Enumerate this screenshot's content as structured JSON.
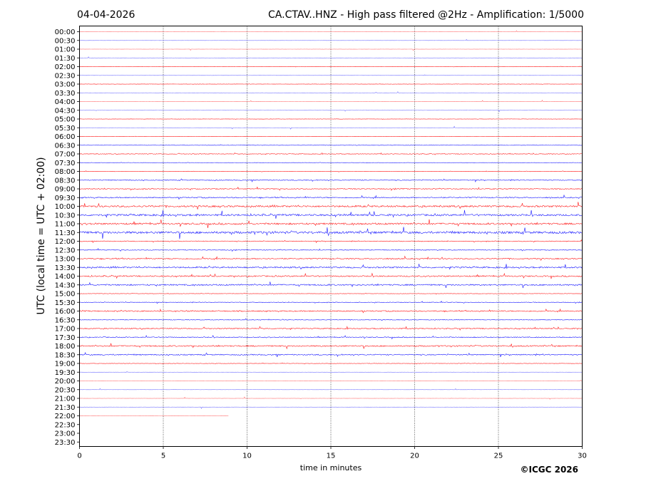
{
  "header": {
    "date": "04-04-2026",
    "title": "CA.CTAV..HNZ - High pass filtered @2Hz - Amplification: 1/5000"
  },
  "footer": {
    "copyright": "©ICGC 2026"
  },
  "chart_data": {
    "type": "line",
    "title": "CA.CTAV..HNZ - High pass filtered @2Hz - Amplification: 1/5000",
    "xlabel": "time in minutes",
    "ylabel": "UTC (local time = UTC + 02:00)",
    "xlim": [
      0,
      30
    ],
    "x_ticks": [
      0,
      5,
      10,
      15,
      20,
      25,
      30
    ],
    "y_tick_labels": [
      "00:00",
      "00:30",
      "01:00",
      "01:30",
      "02:00",
      "02:30",
      "03:00",
      "03:30",
      "04:00",
      "04:30",
      "05:00",
      "05:30",
      "06:00",
      "06:30",
      "07:00",
      "07:30",
      "08:00",
      "08:30",
      "09:00",
      "09:30",
      "10:00",
      "10:30",
      "11:00",
      "11:30",
      "12:00",
      "12:30",
      "13:00",
      "13:30",
      "14:00",
      "14:30",
      "15:00",
      "15:30",
      "16:00",
      "16:30",
      "17:00",
      "17:30",
      "18:00",
      "18:30",
      "19:00",
      "19:30",
      "20:00",
      "20:30",
      "21:00",
      "21:30",
      "22:00",
      "22:30",
      "23:00",
      "23:30"
    ],
    "trace_colors": [
      "#ff0000",
      "#0000ff"
    ],
    "grid": "vertical dotted lines at 5-minute intervals",
    "trace_activity": [
      0.05,
      0.05,
      0.05,
      0.05,
      0.1,
      0.05,
      0.1,
      0.05,
      0.05,
      0.05,
      0.1,
      0.05,
      0.1,
      0.15,
      0.25,
      0.1,
      0.15,
      0.35,
      0.35,
      0.45,
      0.7,
      0.75,
      0.7,
      0.9,
      0.3,
      0.3,
      0.45,
      0.6,
      0.5,
      0.55,
      0.15,
      0.25,
      0.45,
      0.25,
      0.4,
      0.35,
      0.5,
      0.45,
      0.15,
      0.05,
      0.05,
      0.05,
      0.05,
      0.05,
      0.05,
      0,
      0,
      0
    ],
    "last_trace": {
      "label": "22:00",
      "end_minute": 8.9
    }
  }
}
